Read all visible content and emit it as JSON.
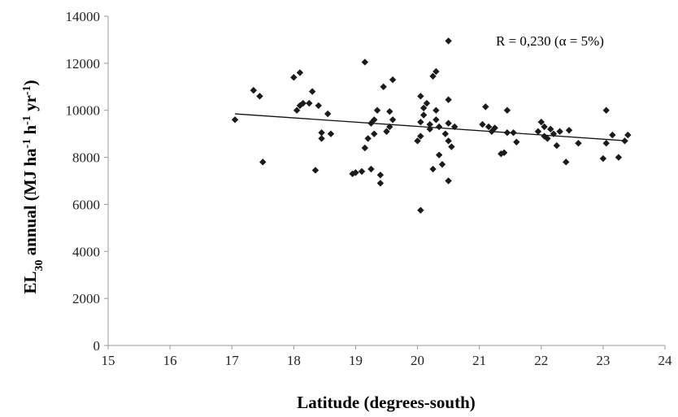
{
  "chart_data": {
    "type": "scatter",
    "xlabel": "Latitude (degrees-south)",
    "ylabel": {
      "main": "EL",
      "sub": "30",
      "rest1": " annual (MJ ha",
      "sup1": "-1",
      "rest2": " h",
      "sup2": "-1",
      "rest3": " yr",
      "sup3": "-1",
      "rest4": ")"
    },
    "annotation": "R = 0,230 (α = 5%)",
    "xlim": [
      15,
      24
    ],
    "ylim": [
      0,
      14000
    ],
    "xticks": [
      15,
      16,
      17,
      18,
      19,
      20,
      21,
      22,
      23,
      24
    ],
    "yticks": [
      0,
      2000,
      4000,
      6000,
      8000,
      10000,
      12000,
      14000
    ],
    "grid": false,
    "trendline": {
      "x": [
        17.05,
        23.4
      ],
      "y": [
        9850,
        8700
      ]
    },
    "points": [
      [
        17.05,
        9600
      ],
      [
        17.35,
        10850
      ],
      [
        17.45,
        10600
      ],
      [
        17.5,
        7800
      ],
      [
        18.0,
        11400
      ],
      [
        18.1,
        11600
      ],
      [
        18.05,
        10000
      ],
      [
        18.15,
        10300
      ],
      [
        18.1,
        10200
      ],
      [
        18.25,
        10300
      ],
      [
        18.3,
        10800
      ],
      [
        18.35,
        7450
      ],
      [
        18.4,
        10200
      ],
      [
        18.45,
        9050
      ],
      [
        18.45,
        8800
      ],
      [
        18.55,
        9850
      ],
      [
        18.6,
        9000
      ],
      [
        18.95,
        7300
      ],
      [
        19.0,
        7350
      ],
      [
        19.1,
        7400
      ],
      [
        19.15,
        12050
      ],
      [
        19.15,
        8400
      ],
      [
        19.2,
        8800
      ],
      [
        19.25,
        9450
      ],
      [
        19.3,
        9000
      ],
      [
        19.25,
        7500
      ],
      [
        19.3,
        9600
      ],
      [
        19.35,
        10000
      ],
      [
        19.4,
        7250
      ],
      [
        19.4,
        6900
      ],
      [
        19.45,
        11000
      ],
      [
        19.5,
        9100
      ],
      [
        19.55,
        9300
      ],
      [
        19.6,
        11300
      ],
      [
        19.55,
        9950
      ],
      [
        19.6,
        9600
      ],
      [
        20.0,
        8700
      ],
      [
        20.05,
        8900
      ],
      [
        20.05,
        10600
      ],
      [
        20.05,
        5750
      ],
      [
        20.05,
        9500
      ],
      [
        20.1,
        9800
      ],
      [
        20.1,
        10100
      ],
      [
        20.15,
        10300
      ],
      [
        20.2,
        9400
      ],
      [
        20.2,
        9200
      ],
      [
        20.25,
        7500
      ],
      [
        20.25,
        11450
      ],
      [
        20.3,
        11650
      ],
      [
        20.3,
        10000
      ],
      [
        20.3,
        9600
      ],
      [
        20.35,
        8100
      ],
      [
        20.35,
        9300
      ],
      [
        20.4,
        7700
      ],
      [
        20.45,
        9000
      ],
      [
        20.5,
        8700
      ],
      [
        20.5,
        9450
      ],
      [
        20.5,
        12950
      ],
      [
        20.5,
        10450
      ],
      [
        20.5,
        7000
      ],
      [
        20.55,
        8450
      ],
      [
        20.6,
        9300
      ],
      [
        21.05,
        9400
      ],
      [
        21.1,
        10150
      ],
      [
        21.15,
        9300
      ],
      [
        21.2,
        9100
      ],
      [
        21.25,
        9250
      ],
      [
        21.35,
        8150
      ],
      [
        21.4,
        8200
      ],
      [
        21.45,
        10000
      ],
      [
        21.45,
        9050
      ],
      [
        21.55,
        9050
      ],
      [
        21.6,
        8650
      ],
      [
        21.95,
        9100
      ],
      [
        22.0,
        9500
      ],
      [
        22.05,
        8900
      ],
      [
        22.05,
        9300
      ],
      [
        22.1,
        8800
      ],
      [
        22.15,
        9200
      ],
      [
        22.2,
        9000
      ],
      [
        22.25,
        8500
      ],
      [
        22.3,
        9100
      ],
      [
        22.4,
        7800
      ],
      [
        22.45,
        9150
      ],
      [
        22.6,
        8600
      ],
      [
        23.0,
        7950
      ],
      [
        23.05,
        8600
      ],
      [
        23.05,
        10000
      ],
      [
        23.15,
        8950
      ],
      [
        23.25,
        8000
      ],
      [
        23.35,
        8700
      ],
      [
        23.4,
        8950
      ]
    ]
  }
}
